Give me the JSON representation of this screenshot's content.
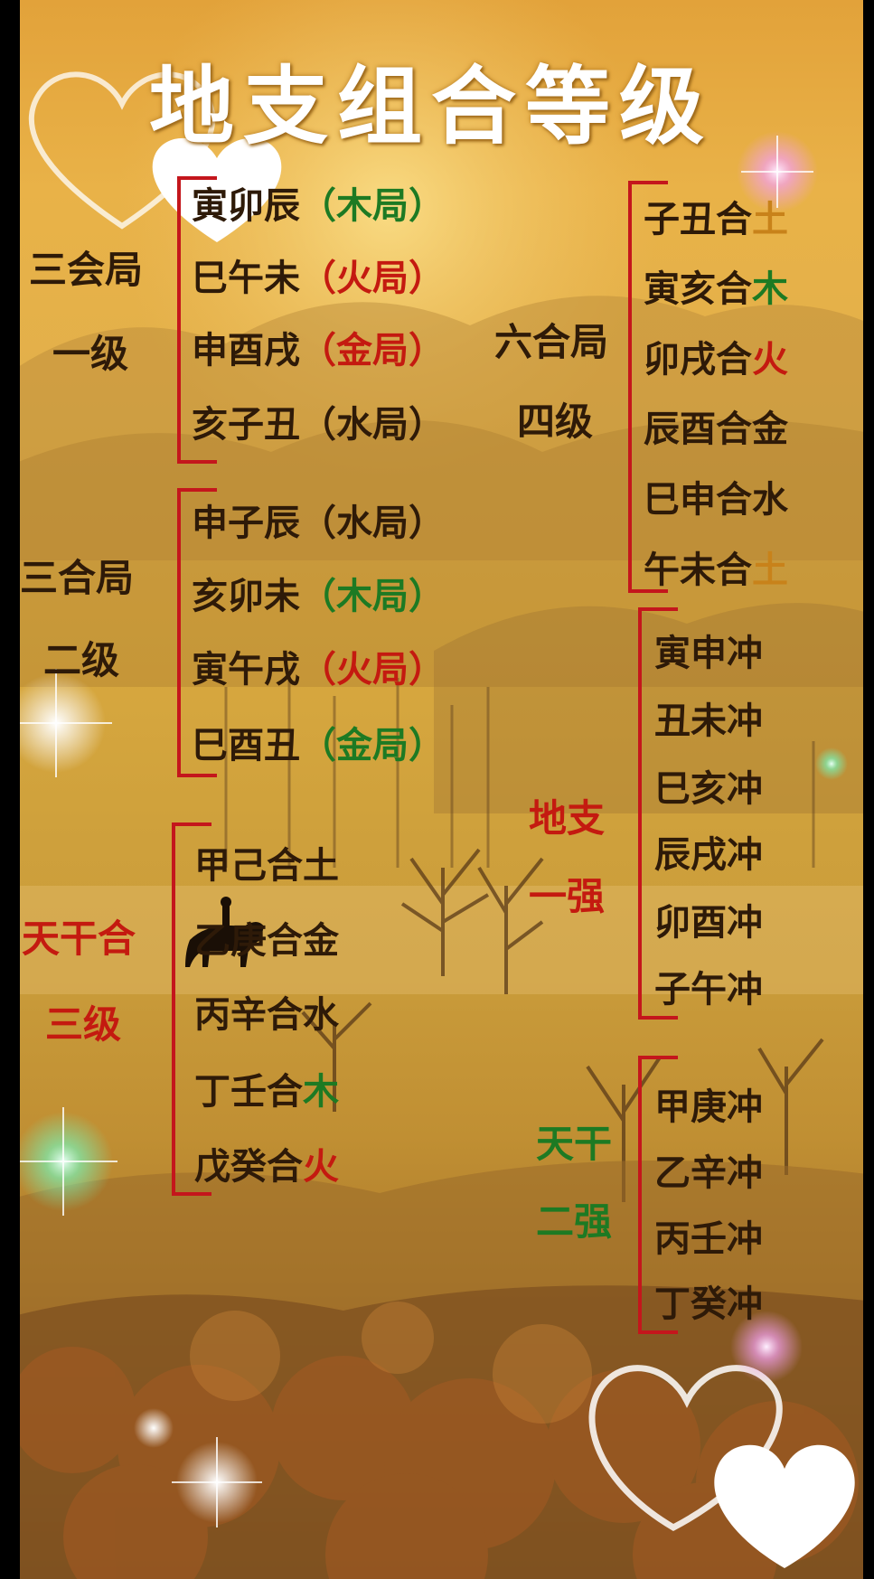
{
  "title": "地支组合等级",
  "groups": {
    "sanhui": {
      "label1": "三会局",
      "label2": "一级",
      "items": [
        {
          "text": "寅卯辰",
          "paren": "（木局）"
        },
        {
          "text": "巳午未",
          "paren": "（火局）"
        },
        {
          "text": "申酉戌",
          "paren": "（金局）"
        },
        {
          "text": "亥子丑",
          "paren": "（水局）"
        }
      ]
    },
    "sanhe": {
      "label1": "三合局",
      "label2": "二级",
      "items": [
        {
          "text": "申子辰",
          "paren": "（水局）"
        },
        {
          "text": "亥卯未",
          "paren": "（木局）"
        },
        {
          "text": "寅午戌",
          "paren": "（火局）"
        },
        {
          "text": "巳酉丑",
          "paren": "（金局）"
        }
      ]
    },
    "tiangan_he": {
      "label1": "天干合",
      "label2": "三级",
      "items": [
        {
          "pre": "甲己合",
          "el": "土"
        },
        {
          "pre": "乙庚合",
          "el": "金"
        },
        {
          "pre": "丙辛合",
          "el": "水"
        },
        {
          "pre": "丁壬合",
          "el": "木"
        },
        {
          "pre": "戊癸合",
          "el": "火"
        }
      ]
    },
    "liuhe": {
      "label1": "六合局",
      "label2": "四级",
      "items": [
        {
          "pre": "子丑合",
          "el": "土"
        },
        {
          "pre": "寅亥合",
          "el": "木"
        },
        {
          "pre": "卯戌合",
          "el": "火"
        },
        {
          "pre": "辰酉合",
          "el": "金"
        },
        {
          "pre": "巳申合",
          "el": "水"
        },
        {
          "pre": "午未合",
          "el": "土"
        }
      ]
    },
    "dizhi_chong": {
      "label1": "地支",
      "label2": "一强",
      "items": [
        "寅申冲",
        "丑未冲",
        "巳亥冲",
        "辰戌冲",
        "卯酉冲",
        "子午冲"
      ]
    },
    "tiangan_chong": {
      "label1": "天干",
      "label2": "二强",
      "items": [
        "甲庚冲",
        "乙辛冲",
        "丙壬冲",
        "丁癸冲"
      ]
    }
  },
  "colors": {
    "bracket": "#c4161c",
    "wood": "#1d7a23",
    "fire": "#c41a10",
    "metal": "#c8821a",
    "text": "#2e1a08"
  }
}
